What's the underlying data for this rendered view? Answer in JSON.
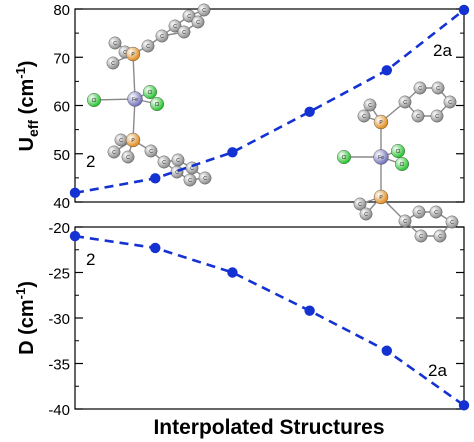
{
  "chart_data": [
    {
      "type": "line",
      "panel": "top",
      "ylabel_main": "U",
      "ylabel_sub": "eff",
      "ylabel_unit": " (cm",
      "ylabel_exp": "-1",
      "ylabel_close": ")",
      "ylim": [
        40,
        80
      ],
      "yticks": [
        40,
        50,
        60,
        70,
        80
      ],
      "x": [
        0,
        1,
        2,
        3,
        4,
        5,
        6
      ],
      "series": [
        {
          "values": [
            41.9,
            44.9,
            50.3,
            58.7,
            67.3,
            79.8
          ],
          "x": [
            0,
            1.04,
            2.04,
            3.04,
            4.04,
            5.04
          ],
          "color": "#1432d2",
          "style": "dashed"
        }
      ],
      "annotations": [
        {
          "text": "2",
          "near": "left-bottom"
        },
        {
          "text": "2a",
          "near": "right-top"
        }
      ],
      "grid": false
    },
    {
      "type": "line",
      "panel": "bottom",
      "ylabel_main": "D",
      "ylabel_unit": " (cm",
      "ylabel_exp": "-1",
      "ylabel_close": ")",
      "ylim": [
        -40,
        -20
      ],
      "yticks": [
        -20,
        -25,
        -30,
        -35,
        -40
      ],
      "series": [
        {
          "values": [
            -21.0,
            -22.3,
            -25.0,
            -29.2,
            -33.6,
            -39.6
          ],
          "x": [
            0,
            1.04,
            2.04,
            3.04,
            4.04,
            5.04
          ],
          "color": "#1432d2",
          "style": "dashed"
        }
      ],
      "annotations": [
        {
          "text": "2",
          "near": "left-top"
        },
        {
          "text": "2a",
          "near": "right-bottom"
        }
      ],
      "xlabel": "Interpolated Structures",
      "grid": false
    }
  ],
  "colors": {
    "line": "#1432d2",
    "carbon": "#8a8a8a",
    "phosphorus": "#e08a1c",
    "chlorine": "#22c22a",
    "metal": "#6f6fb8"
  },
  "molecule_atom_labels": {
    "carbon": "C",
    "phosphorus": "P",
    "chlorine": "Cl",
    "metal": "Fe"
  }
}
